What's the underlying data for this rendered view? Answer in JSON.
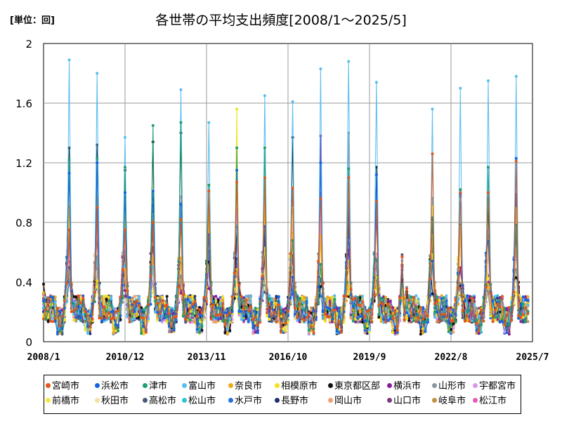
{
  "unit_label": "[単位：回]",
  "chart_data": {
    "type": "line",
    "title": "各世帯の平均支出頻度[2008/1～2025/5]",
    "x_range": [
      "2008-01",
      "2025-07"
    ],
    "xtick_labels": [
      "2008/1",
      "2010/12",
      "2013/11",
      "2016/10",
      "2019/9",
      "2022/8",
      "2025/7"
    ],
    "ylim": [
      0,
      2
    ],
    "ytick_labels": [
      "0",
      "0.4",
      "0.8",
      "1.2",
      "1.6",
      "2"
    ],
    "grid": true,
    "legend_position": "bottom",
    "series": [
      {
        "name": "宮崎市",
        "color": "#e2561a"
      },
      {
        "name": "浜松市",
        "color": "#1565e0"
      },
      {
        "name": "津市",
        "color": "#1f9e6e"
      },
      {
        "name": "富山市",
        "color": "#58bdf0"
      },
      {
        "name": "奈良市",
        "color": "#f0a91a"
      },
      {
        "name": "相模原市",
        "color": "#f2e21a"
      },
      {
        "name": "東京都区部",
        "color": "#111111"
      },
      {
        "name": "横浜市",
        "color": "#8a1aa0"
      },
      {
        "name": "山形市",
        "color": "#8c959c"
      },
      {
        "name": "宇都宮市",
        "color": "#d79ae6"
      },
      {
        "name": "前橋市",
        "color": "#f2ea3c"
      },
      {
        "name": "秋田市",
        "color": "#f5e0a0"
      },
      {
        "name": "高松市",
        "color": "#4a5a7a"
      },
      {
        "name": "松山市",
        "color": "#2ec4d6"
      },
      {
        "name": "水戸市",
        "color": "#2a6ee0"
      },
      {
        "name": "長野市",
        "color": "#1c2f6e"
      },
      {
        "name": "岡山市",
        "color": "#f0a070"
      },
      {
        "name": "山口市",
        "color": "#7a3a7a"
      },
      {
        "name": "岐阜市",
        "color": "#c49040"
      },
      {
        "name": "松江市",
        "color": "#e65ab8"
      }
    ],
    "annual_peaks": [
      {
        "year": 2008,
        "max_series": "富山市",
        "value": 1.89,
        "others": {
          "津市": 1.22,
          "浜松市": 1.13,
          "東京都区部": 1.3,
          "宮崎市": 0.75
        }
      },
      {
        "year": 2009,
        "max_series": "富山市",
        "value": 1.8,
        "others": {
          "津市": 1.23,
          "浜松市": 1.2,
          "東京都区部": 1.32,
          "宮崎市": 0.9
        }
      },
      {
        "year": 2010,
        "max_series": "富山市",
        "value": 1.37,
        "others": {
          "津市": 1.17,
          "浜松市": 1.0,
          "東京都区部": 1.15,
          "宮崎市": 0.75
        }
      },
      {
        "year": 2011,
        "max_series": "津市",
        "value": 1.45,
        "others": {
          "浜松市": 1.01,
          "東京都区部": 1.34,
          "宮崎市": 0.8
        }
      },
      {
        "year": 2012,
        "max_series": "富山市",
        "value": 1.69,
        "others": {
          "津市": 1.47,
          "浜松市": 0.92,
          "東京都区部": 1.4,
          "宮崎市": 0.82
        }
      },
      {
        "year": 2013,
        "max_series": "富山市",
        "value": 1.47,
        "others": {
          "津市": 1.05,
          "宮崎市": 1.01,
          "高松市": 0.73
        }
      },
      {
        "year": 2014,
        "max_series": "相模原市",
        "value": 1.56,
        "others": {
          "津市": 1.3,
          "浜松市": 1.15,
          "宮崎市": 1.07
        }
      },
      {
        "year": 2015,
        "max_series": "富山市",
        "value": 1.65,
        "others": {
          "津市": 1.3,
          "宮崎市": 1.1
        }
      },
      {
        "year": 2016,
        "max_series": "富山市",
        "value": 1.61,
        "others": {
          "東京都区部": 1.37,
          "宮崎市": 1.03
        }
      },
      {
        "year": 2017,
        "max_series": "富山市",
        "value": 1.83,
        "others": {
          "横浜市": 1.38,
          "浜松市": 1.2,
          "宮崎市": 0.96
        }
      },
      {
        "year": 2018,
        "max_series": "富山市",
        "value": 1.88,
        "others": {
          "山形市": 1.4,
          "津市": 1.16,
          "宮崎市": 1.1,
          "山口市": 0.83
        }
      },
      {
        "year": 2019,
        "max_series": "富山市",
        "value": 1.74,
        "others": {
          "東京都区部": 1.17,
          "浜松市": 1.12,
          "宮崎市": 0.94
        }
      },
      {
        "year": 2021,
        "max_series": "富山市",
        "value": 1.56,
        "others": {
          "宮崎市": 1.26,
          "横浜市": 0.82
        }
      },
      {
        "year": 2022,
        "max_series": "富山市",
        "value": 1.7,
        "others": {
          "津市": 1.02,
          "宮崎市": 1.0
        }
      },
      {
        "year": 2023,
        "max_series": "富山市",
        "value": 1.75,
        "others": {
          "津市": 1.17,
          "宮崎市": 1.0
        }
      },
      {
        "year": 2024,
        "max_series": "富山市",
        "value": 1.78,
        "others": {
          "浜松市": 1.23,
          "宮崎市": 1.21
        }
      }
    ],
    "baseline_range": [
      0.02,
      0.4
    ]
  }
}
